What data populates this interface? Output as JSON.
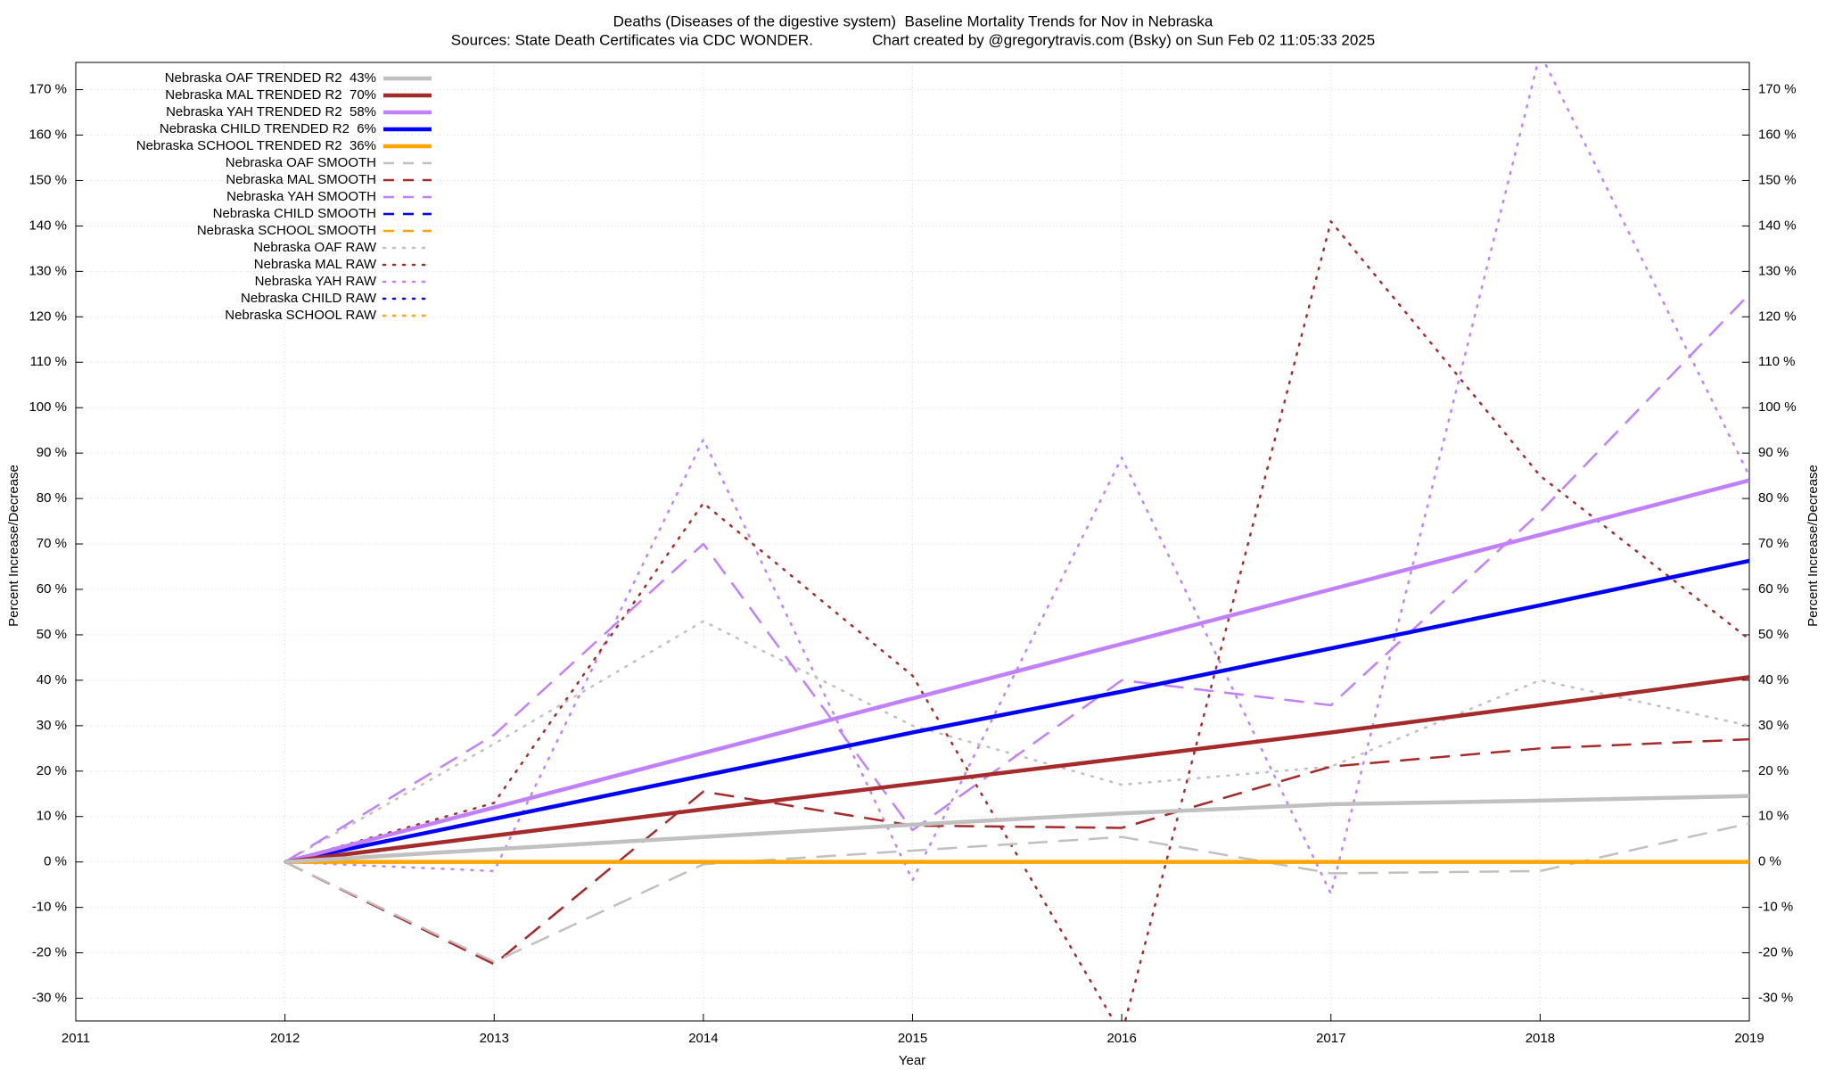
{
  "chart_data": {
    "type": "line",
    "title": "Deaths (Diseases of the digestive system)  Baseline Mortality Trends for Nov in Nebraska",
    "subtitle": "Sources: State Death Certificates via CDC WONDER.              Chart created by @gregorytravis.com (Bsky) on Sun Feb 02 11:05:33 2025",
    "xlabel": "Year",
    "ylabel": "Percent Increase/Decrease",
    "x": [
      2012,
      2013,
      2014,
      2015,
      2016,
      2017,
      2018,
      2019
    ],
    "xlim": [
      2011,
      2019
    ],
    "xticks": [
      2011,
      2012,
      2013,
      2014,
      2015,
      2016,
      2017,
      2018,
      2019
    ],
    "ylim": [
      -35,
      176
    ],
    "yticks": [
      {
        "value": -30,
        "label": "-30 %"
      },
      {
        "value": -20,
        "label": "-20 %"
      },
      {
        "value": -10,
        "label": "-10 %"
      },
      {
        "value": 0,
        "label": "0 %"
      },
      {
        "value": 10,
        "label": "10 %"
      },
      {
        "value": 20,
        "label": "20 %"
      },
      {
        "value": 30,
        "label": "30 %"
      },
      {
        "value": 40,
        "label": "40 %"
      },
      {
        "value": 50,
        "label": "50 %"
      },
      {
        "value": 60,
        "label": "60 %"
      },
      {
        "value": 70,
        "label": "70 %"
      },
      {
        "value": 80,
        "label": "80 %"
      },
      {
        "value": 90,
        "label": "90 %"
      },
      {
        "value": 100,
        "label": "100 %"
      },
      {
        "value": 110,
        "label": "110 %"
      },
      {
        "value": 120,
        "label": "120 %"
      },
      {
        "value": 130,
        "label": "130 %"
      },
      {
        "value": 140,
        "label": "140 %"
      },
      {
        "value": 150,
        "label": "150 %"
      },
      {
        "value": 160,
        "label": "160 %"
      },
      {
        "value": 170,
        "label": "170 %"
      }
    ],
    "grid": true,
    "legend": "top-left",
    "series": [
      {
        "name": "Nebraska OAF TRENDED R2  43%",
        "color": "#c0c0c0",
        "style": "solid",
        "values": [
          0,
          2.8,
          5.5,
          8.2,
          10.7,
          12.7,
          13.5,
          14.5
        ]
      },
      {
        "name": "Nebraska MAL TRENDED R2  70%",
        "color": "#a52a2a",
        "style": "solid",
        "values": [
          0,
          5.8,
          11.6,
          17.2,
          22.8,
          28.5,
          34.5,
          40.7
        ]
      },
      {
        "name": "Nebraska YAH TRENDED R2  58%",
        "color": "#c080ff",
        "style": "solid",
        "values": [
          0,
          12,
          24,
          36,
          48,
          60,
          72,
          84
        ]
      },
      {
        "name": "Nebraska CHILD TRENDED R2  6%",
        "color": "#0000ff",
        "style": "solid",
        "values": [
          0,
          9.5,
          19,
          28.5,
          37.5,
          47,
          56.5,
          66.3
        ]
      },
      {
        "name": "Nebraska SCHOOL TRENDED R2  36%",
        "color": "#ffa500",
        "style": "solid",
        "values": [
          0,
          0,
          0,
          0,
          0,
          0,
          0,
          0
        ]
      },
      {
        "name": "Nebraska OAF SMOOTH",
        "color": "#c0c0c0",
        "style": "dashed",
        "values": [
          0,
          -22,
          -0.5,
          2.5,
          5.5,
          -2.5,
          -2,
          8.5
        ]
      },
      {
        "name": "Nebraska MAL SMOOTH",
        "color": "#a52a2a",
        "style": "dashed",
        "values": [
          0,
          -22.5,
          15.5,
          8,
          7.5,
          21,
          25,
          27
        ]
      },
      {
        "name": "Nebraska YAH SMOOTH",
        "color": "#c080ff",
        "style": "dashed",
        "values": [
          0,
          28,
          70,
          7,
          40,
          34.5,
          77,
          125
        ]
      },
      {
        "name": "Nebraska CHILD SMOOTH",
        "color": "#0000ff",
        "style": "dashed",
        "values": [
          0,
          0,
          0,
          0,
          0,
          0,
          0,
          0
        ]
      },
      {
        "name": "Nebraska SCHOOL SMOOTH",
        "color": "#ffa500",
        "style": "dashed",
        "values": [
          0,
          0,
          0,
          0,
          0,
          0,
          0,
          0
        ]
      },
      {
        "name": "Nebraska OAF RAW",
        "color": "#c0c0c0",
        "style": "dotted",
        "values": [
          0,
          26,
          53,
          30,
          17,
          21,
          40,
          30
        ]
      },
      {
        "name": "Nebraska MAL RAW",
        "color": "#a52a2a",
        "style": "dotted",
        "values": [
          0,
          13,
          79,
          41,
          -38,
          141,
          85,
          49
        ]
      },
      {
        "name": "Nebraska YAH RAW",
        "color": "#c080ff",
        "style": "dotted",
        "values": [
          0,
          -2,
          93,
          -4,
          89,
          -7,
          178,
          85
        ]
      },
      {
        "name": "Nebraska CHILD RAW",
        "color": "#0000ff",
        "style": "dotted",
        "values": [
          0,
          0,
          0,
          0,
          0,
          0,
          0,
          0
        ]
      },
      {
        "name": "Nebraska SCHOOL RAW",
        "color": "#ffa500",
        "style": "dotted",
        "values": [
          0,
          0,
          0,
          0,
          0,
          0,
          0,
          0
        ]
      }
    ]
  }
}
